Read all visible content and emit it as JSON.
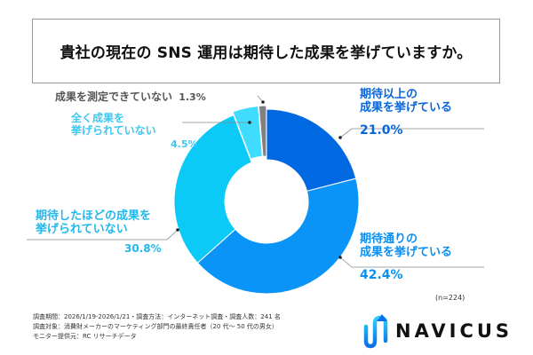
{
  "chart_data": {
    "type": "pie",
    "variant": "donut",
    "title": "貴社の現在の SNS 運用は期待した成果を挙げていますか。",
    "sample_size": "(n=224)",
    "start_angle": "top, clockwise",
    "slices": [
      {
        "label_lines": [
          "期待以上の",
          "成果を挙げている"
        ],
        "value": 21.0,
        "value_label": "21.0%",
        "color": "#0068e0",
        "text_color": "#0a66d8"
      },
      {
        "label_lines": [
          "期待通りの",
          "成果を挙げている"
        ],
        "value": 42.4,
        "value_label": "42.4%",
        "color": "#0a94f8",
        "text_color": "#0a8ef0"
      },
      {
        "label_lines": [
          "期待したほどの成果を",
          "挙げられていない"
        ],
        "value": 30.8,
        "value_label": "30.8%",
        "color": "#0ccaf8",
        "text_color": "#22b8ec"
      },
      {
        "label_lines": [
          "全く成果を",
          "挙げられていない"
        ],
        "value": 4.5,
        "value_label": "4.5%",
        "color": "#40dcff",
        "text_color": "#3cc8f0"
      },
      {
        "label_lines": [
          "成果を測定できていない"
        ],
        "value": 1.3,
        "value_label": "1.3%",
        "color": "#808080",
        "text_color": "#555555"
      }
    ]
  },
  "footnote": [
    "調査期間：2026/1/19-2026/1/21・調査方法：インターネット調査・調査人数：241 名",
    "調査対象：消費財メーカーのマーケティング部門の最終責任者（20 代～ 50 代の男女）",
    "モニター提供元：RC リサーチデータ"
  ],
  "logo": {
    "text": "NAVICUS",
    "colors": [
      "#0a6fe8",
      "#2ad0ff"
    ]
  }
}
